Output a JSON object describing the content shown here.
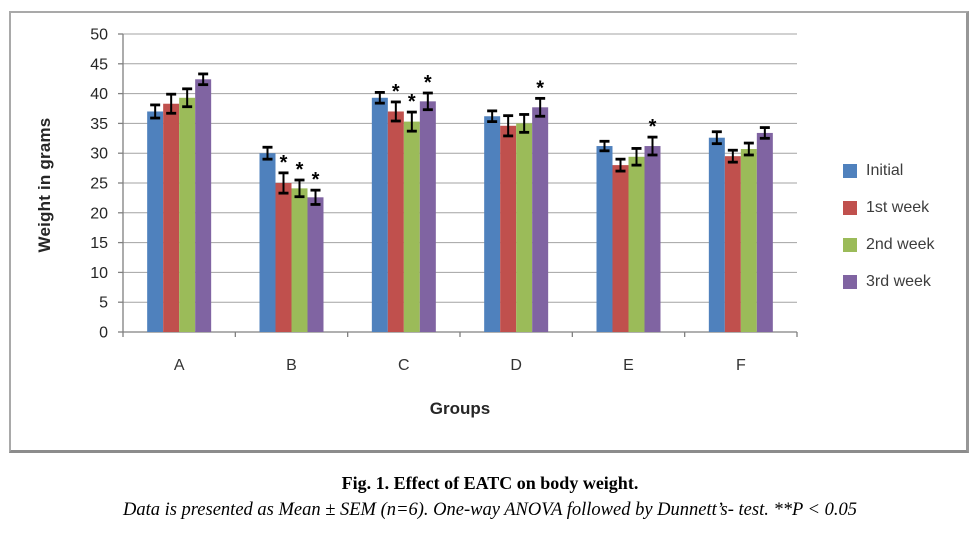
{
  "chart_data": {
    "type": "bar",
    "title": "",
    "xlabel": "Groups",
    "ylabel": "Weight in grams",
    "ylim": [
      0,
      50
    ],
    "ytick_step": 5,
    "grid": true,
    "legend_position": "right",
    "error_bars": "SEM",
    "significance_marker": "*",
    "categories": [
      "A",
      "B",
      "C",
      "D",
      "E",
      "F"
    ],
    "series": [
      {
        "name": "Initial",
        "color": "#4f81bd",
        "values": [
          37.0,
          30.0,
          39.3,
          36.2,
          31.2,
          32.6
        ],
        "sem": [
          1.1,
          1.0,
          0.9,
          0.9,
          0.8,
          1.0
        ],
        "significant": [
          false,
          false,
          false,
          false,
          false,
          false
        ]
      },
      {
        "name": "1st week",
        "color": "#c0504d",
        "values": [
          38.3,
          25.0,
          37.0,
          34.6,
          28.0,
          29.5
        ],
        "sem": [
          1.6,
          1.7,
          1.6,
          1.7,
          1.0,
          1.0
        ],
        "significant": [
          false,
          true,
          true,
          false,
          false,
          false
        ]
      },
      {
        "name": "2nd week",
        "color": "#9bbb59",
        "values": [
          39.3,
          24.1,
          35.3,
          35.0,
          29.4,
          30.7
        ],
        "sem": [
          1.5,
          1.4,
          1.6,
          1.5,
          1.4,
          1.0
        ],
        "significant": [
          false,
          true,
          true,
          false,
          false,
          false
        ]
      },
      {
        "name": "3rd week",
        "color": "#8064a2",
        "values": [
          42.4,
          22.6,
          38.7,
          37.7,
          31.2,
          33.4
        ],
        "sem": [
          0.9,
          1.2,
          1.4,
          1.5,
          1.5,
          0.9
        ],
        "significant": [
          false,
          true,
          true,
          true,
          true,
          false
        ]
      }
    ],
    "axis_color": "#808080",
    "gridline_color": "#a3a3a3"
  },
  "caption": {
    "title": "Fig. 1. Effect of EATC on body weight.",
    "subtitle": "Data is presented as Mean ± SEM (n=6). One-way  ANOVA followed by Dunnett’s- test. **P < 0.05"
  }
}
